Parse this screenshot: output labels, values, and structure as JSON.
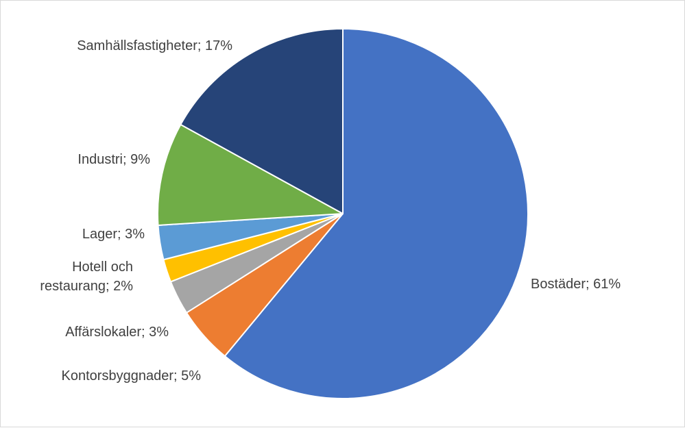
{
  "chart_data": {
    "type": "pie",
    "title": "",
    "slices": [
      {
        "name": "Bostäder",
        "value": 61,
        "label": [
          "Bostäder; 61%"
        ],
        "color": "#4472C4"
      },
      {
        "name": "Kontorsbyggnader",
        "value": 5,
        "label": [
          "Kontorsbyggnader; 5%"
        ],
        "color": "#ED7D31"
      },
      {
        "name": "Affärslokaler",
        "value": 3,
        "label": [
          "Affärslokaler; 3%"
        ],
        "color": "#A5A5A5"
      },
      {
        "name": "Hotell och restaurang",
        "value": 2,
        "label": [
          "Hotell och",
          "restaurang; 2%"
        ],
        "color": "#FFC000"
      },
      {
        "name": "Lager",
        "value": 3,
        "label": [
          "Lager; 3%"
        ],
        "color": "#5B9BD5"
      },
      {
        "name": "Industri",
        "value": 9,
        "label": [
          "Industri; 9%"
        ],
        "color": "#70AD47"
      },
      {
        "name": "Samhällsfastigheter",
        "value": 17,
        "label": [
          "Samhällsfastigheter; 17%"
        ],
        "color": "#264478"
      }
    ],
    "start_angle_deg": 0,
    "direction": "clockwise",
    "legend": "none"
  }
}
